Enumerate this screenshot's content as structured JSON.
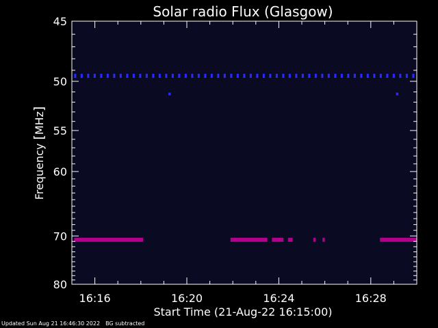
{
  "chart_data": {
    "type": "heatmap",
    "title": "Solar radio Flux (Glasgow)",
    "xlabel": "Start Time (21-Aug-22 16:15:00)",
    "ylabel_text": "Frequency ",
    "ylabel_unit": "MHz",
    "x_range_minutes": [
      15.0,
      30.0
    ],
    "x_ticks": [
      "16:16",
      "16:20",
      "16:24",
      "16:28"
    ],
    "x_tick_minutes": [
      16,
      20,
      24,
      28
    ],
    "y_range_mhz": [
      45,
      80
    ],
    "y_ticks": [
      45,
      50,
      55,
      60,
      70,
      80
    ],
    "y_scale": "reciprocal",
    "background_color": "#0a0a22",
    "features": [
      {
        "name": "50 MHz dotted band",
        "freq_mhz": 49.5,
        "color": "#2a2aff",
        "pattern": "dotted",
        "start_min": 15.1,
        "end_min": 30.0
      },
      {
        "name": "51 MHz spot",
        "freq_mhz": 51.2,
        "color": "#2a2aff",
        "pattern": "spot",
        "start_min": 19.2,
        "end_min": 19.3
      },
      {
        "name": "51 MHz spot",
        "freq_mhz": 51.2,
        "color": "#2a2aff",
        "pattern": "spot",
        "start_min": 29.1,
        "end_min": 29.2
      },
      {
        "name": "70.5 MHz band",
        "freq_mhz": 70.7,
        "color": "#b0008c",
        "pattern": "solid",
        "start_min": 15.1,
        "end_min": 18.1
      },
      {
        "name": "70.5 MHz band",
        "freq_mhz": 70.7,
        "color": "#b0008c",
        "pattern": "solid",
        "start_min": 21.9,
        "end_min": 23.5
      },
      {
        "name": "70.5 MHz band",
        "freq_mhz": 70.7,
        "color": "#b0008c",
        "pattern": "solid",
        "start_min": 23.7,
        "end_min": 24.2
      },
      {
        "name": "70.5 MHz band",
        "freq_mhz": 70.7,
        "color": "#b0008c",
        "pattern": "solid",
        "start_min": 24.4,
        "end_min": 24.6
      },
      {
        "name": "70.5 MHz band",
        "freq_mhz": 70.7,
        "color": "#b0008c",
        "pattern": "solid",
        "start_min": 25.5,
        "end_min": 25.6
      },
      {
        "name": "70.5 MHz band",
        "freq_mhz": 70.7,
        "color": "#b0008c",
        "pattern": "solid",
        "start_min": 25.9,
        "end_min": 26.0
      },
      {
        "name": "70.5 MHz band",
        "freq_mhz": 70.7,
        "color": "#b0008c",
        "pattern": "solid",
        "start_min": 28.4,
        "end_min": 30.0
      }
    ]
  },
  "footer": {
    "updated": "Updated Sun Aug 21 16:46:30 2022",
    "note": "BG subtracted"
  }
}
